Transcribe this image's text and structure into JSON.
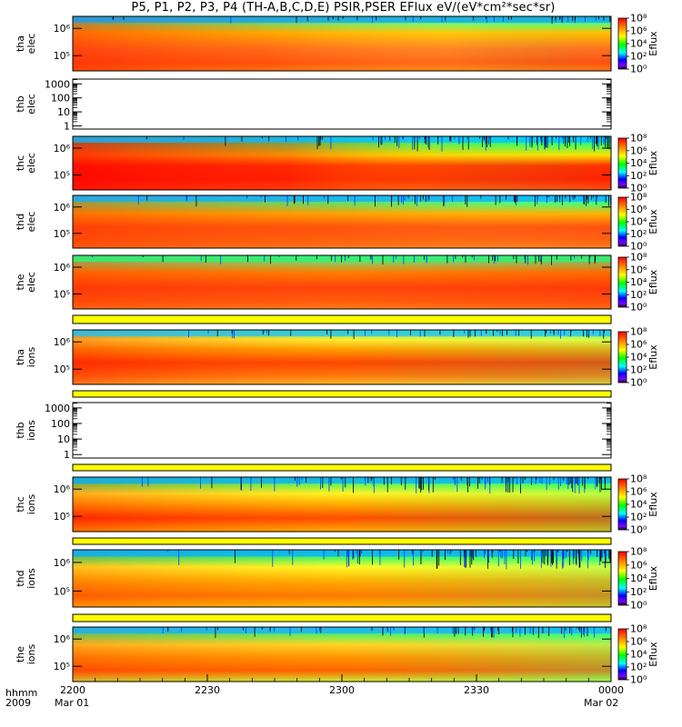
{
  "title": "P5, P1, P2, P3, P4 (TH-A,B,C,D,E) PSIR,PSER EFlux eV/(eV*cm²*sec*sr)",
  "colorbar": {
    "label": "Eflux",
    "ticks": [
      "10⁰",
      "10²",
      "10⁴",
      "10⁶",
      "10⁸"
    ]
  },
  "chart_data": {
    "type": "heatmap",
    "x_ticks": [
      "2200",
      "2230",
      "2300",
      "2330",
      "0000"
    ],
    "x_axis": {
      "row1_label": "hhmm",
      "row2_label": "2009",
      "start_date": "Mar 01",
      "end_date": "Mar 02"
    },
    "panels": [
      {
        "name": "tha elec",
        "ylabel": [
          "tha",
          "elec"
        ],
        "kind": "spectrogram",
        "yticks": [
          "10⁵",
          "10⁶"
        ],
        "colorbar": true,
        "profile": "tha_elec"
      },
      {
        "name": "thb elec",
        "ylabel": [
          "thb",
          "elec"
        ],
        "kind": "empty",
        "yticks": [
          "1",
          "10",
          "100",
          "1000"
        ],
        "colorbar": false
      },
      {
        "name": "thc elec",
        "ylabel": [
          "thc",
          "elec"
        ],
        "kind": "spectrogram",
        "yticks": [
          "10⁵",
          "10⁶"
        ],
        "colorbar": true,
        "profile": "thc_elec"
      },
      {
        "name": "thd elec",
        "ylabel": [
          "thd",
          "elec"
        ],
        "kind": "spectrogram",
        "yticks": [
          "10⁵",
          "10⁶"
        ],
        "colorbar": true,
        "profile": "thd_elec"
      },
      {
        "name": "the elec",
        "ylabel": [
          "the",
          "elec"
        ],
        "kind": "spectrogram",
        "yticks": [
          "10⁵",
          "10⁶"
        ],
        "colorbar": true,
        "profile": "the_elec"
      },
      {
        "name": "bar",
        "kind": "bar"
      },
      {
        "name": "tha ions",
        "ylabel": [
          "tha",
          "ions"
        ],
        "kind": "spectrogram",
        "yticks": [
          "10⁵",
          "10⁶"
        ],
        "colorbar": true,
        "profile": "tha_ions"
      },
      {
        "name": "bar",
        "kind": "bar"
      },
      {
        "name": "thb ions",
        "ylabel": [
          "thb",
          "ions"
        ],
        "kind": "empty",
        "yticks": [
          "1",
          "10",
          "100",
          "1000"
        ],
        "colorbar": false
      },
      {
        "name": "bar",
        "kind": "bar"
      },
      {
        "name": "thc ions",
        "ylabel": [
          "thc",
          "ions"
        ],
        "kind": "spectrogram",
        "yticks": [
          "10⁵",
          "10⁶"
        ],
        "colorbar": true,
        "profile": "thc_ions"
      },
      {
        "name": "bar",
        "kind": "bar"
      },
      {
        "name": "thd ions",
        "ylabel": [
          "thd",
          "ions"
        ],
        "kind": "spectrogram",
        "yticks": [
          "10⁵",
          "10⁶"
        ],
        "colorbar": true,
        "profile": "thd_ions"
      },
      {
        "name": "bar",
        "kind": "bar"
      },
      {
        "name": "the ions",
        "ylabel": [
          "the",
          "ions"
        ],
        "kind": "spectrogram",
        "yticks": [
          "10⁵",
          "10⁶"
        ],
        "colorbar": true,
        "profile": "the_ions"
      }
    ],
    "colors": {
      "bar_fill": "#ffff00",
      "background": "#ffffff"
    },
    "zlim": [
      0,
      8
    ],
    "zscale": "log"
  }
}
